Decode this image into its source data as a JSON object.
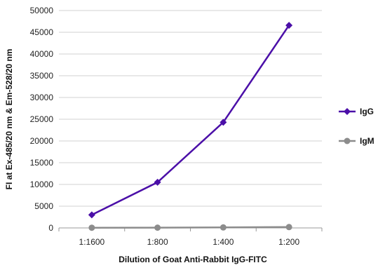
{
  "chart_data": {
    "type": "line",
    "title": "",
    "xlabel": "Dilution of Goat Anti-Rabbit IgG-FITC",
    "ylabel": "FI at Ex-485/20 nm & Em-528/20 nm",
    "categories": [
      "1:1600",
      "1:800",
      "1:400",
      "1:200"
    ],
    "ylim": [
      0,
      50000
    ],
    "yticks": [
      0,
      5000,
      10000,
      15000,
      20000,
      25000,
      30000,
      35000,
      40000,
      45000,
      50000
    ],
    "grid": true,
    "legend_position": "right",
    "series": [
      {
        "name": "IgG",
        "values": [
          3000,
          10500,
          24300,
          46600
        ],
        "color": "#4B0FA8",
        "marker": "diamond"
      },
      {
        "name": "IgM",
        "values": [
          50,
          60,
          120,
          200
        ],
        "color": "#8C8C8C",
        "marker": "circle"
      }
    ]
  }
}
